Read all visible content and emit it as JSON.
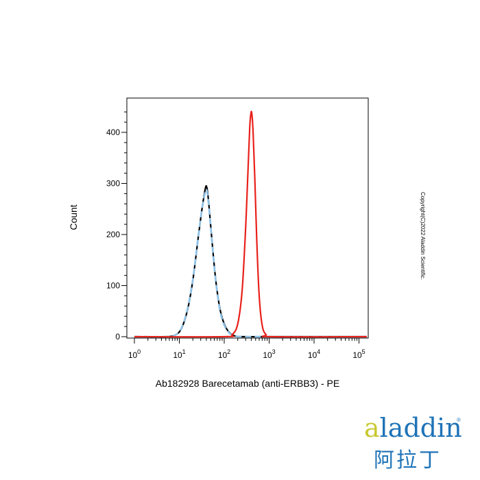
{
  "chart_data": {
    "type": "line",
    "title": "",
    "xlabel": "Ab182928 Barecetamab (anti-ERBB3) - PE",
    "ylabel": "Count",
    "x_scale": "log",
    "xlim": [
      1,
      150000
    ],
    "ylim": [
      0,
      460
    ],
    "x_ticks": [
      {
        "base": "10",
        "exp": "0",
        "value": 1
      },
      {
        "base": "10",
        "exp": "1",
        "value": 10
      },
      {
        "base": "10",
        "exp": "2",
        "value": 100
      },
      {
        "base": "10",
        "exp": "3",
        "value": 1000
      },
      {
        "base": "10",
        "exp": "4",
        "value": 10000
      },
      {
        "base": "10",
        "exp": "5",
        "value": 100000
      }
    ],
    "y_ticks": [
      "0",
      "100",
      "200",
      "300",
      "400"
    ],
    "grid": false,
    "series": [
      {
        "color": "#000000",
        "style": "solid",
        "x": [
          1,
          5,
          8,
          11,
          15,
          20,
          26,
          32,
          37,
          40,
          43,
          48,
          55,
          65,
          80,
          100,
          130,
          180,
          300,
          1000,
          150000
        ],
        "y": [
          0,
          0,
          3,
          15,
          50,
          110,
          190,
          250,
          285,
          295,
          280,
          235,
          175,
          110,
          55,
          25,
          8,
          1,
          0,
          0,
          0
        ]
      },
      {
        "color": "#8fc3e8",
        "style": "dashed",
        "x": [
          1,
          5,
          8,
          11,
          15,
          20,
          26,
          32,
          37,
          40,
          43,
          48,
          55,
          65,
          80,
          100,
          130,
          180,
          300,
          1000,
          150000
        ],
        "y": [
          0,
          0,
          3,
          16,
          52,
          112,
          192,
          250,
          280,
          288,
          275,
          232,
          172,
          108,
          52,
          23,
          7,
          1,
          0,
          0,
          0
        ]
      },
      {
        "color": "#e8201a",
        "style": "solid",
        "x": [
          1,
          100,
          150,
          200,
          250,
          300,
          340,
          370,
          390,
          410,
          440,
          480,
          530,
          600,
          700,
          850,
          1100,
          150000
        ],
        "y": [
          0,
          0,
          4,
          25,
          90,
          215,
          330,
          410,
          435,
          438,
          400,
          310,
          190,
          80,
          22,
          4,
          0,
          0
        ]
      }
    ]
  },
  "copyright": "Copyright(C)2022 Aladdin Scientific.",
  "brand": {
    "latin_a": "a",
    "latin_rest": "laddin",
    "registered": "®",
    "cjk": "阿拉丁"
  }
}
